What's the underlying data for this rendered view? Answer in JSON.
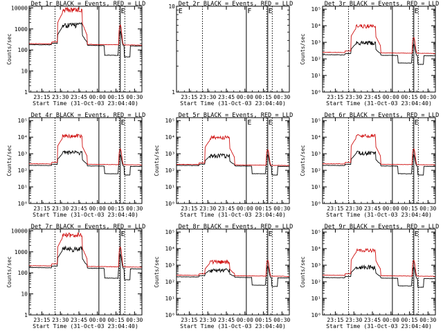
{
  "chart_data": [
    {
      "type": "line",
      "title": "Det 1r BLACK = Events, RED = LLD",
      "xlabel": "Start Time (31-Oct-03 23:04:40)",
      "ylabel": "Counts/sec",
      "yscale": "log",
      "ylim": [
        1,
        12000
      ],
      "yticks": [
        "1",
        "10",
        "100",
        "1000",
        "10000"
      ],
      "xticks": [
        "23:15",
        "23:30",
        "23:45",
        "00:00",
        "00:15",
        "00:30"
      ],
      "markers": [
        "E"
      ],
      "has_data": true,
      "peak": 10000,
      "red_base": 200,
      "black_base": 180,
      "black_peak": 2000
    },
    {
      "type": "line",
      "title": "Det 2r BLACK = Events, RED = LLD",
      "xlabel": "Start Time (31-Oct-03 23:04:40)",
      "ylabel": "",
      "yscale": "log",
      "ylim": [
        1,
        10
      ],
      "yticks": [
        "1",
        "10"
      ],
      "xticks": [
        "23:15",
        "23:30",
        "23:45",
        "00:00",
        "00:15",
        "00:30"
      ],
      "markers": [
        "E",
        "F",
        "E"
      ],
      "has_data": false
    },
    {
      "type": "line",
      "title": "Det 3r BLACK = Events, RED = LLD",
      "xlabel": "Start Time (31-Oct-03 23:04:40)",
      "ylabel": "Counts/sec",
      "yscale": "log",
      "ylim": [
        1,
        150000
      ],
      "yticks": [
        "10⁰",
        "10¹",
        "10²",
        "10³",
        "10⁴",
        "10⁵"
      ],
      "xticks": [
        "23:15",
        "23:30",
        "23:45",
        "00:00",
        "00:15",
        "00:30"
      ],
      "markers": [
        "E"
      ],
      "has_data": true,
      "peak": 12000,
      "red_base": 250,
      "black_base": 180,
      "black_peak": 1200
    },
    {
      "type": "line",
      "title": "Det 4r BLACK = Events, RED = LLD",
      "xlabel": "Start Time (31-Oct-03 23:04:40)",
      "ylabel": "Counts/sec",
      "yscale": "log",
      "ylim": [
        1,
        150000
      ],
      "yticks": [
        "10⁰",
        "10¹",
        "10²",
        "10³",
        "10⁴",
        "10⁵"
      ],
      "xticks": [
        "23:15",
        "23:30",
        "23:45",
        "00:00",
        "00:15",
        "00:30"
      ],
      "markers": [
        "E"
      ],
      "has_data": true,
      "peak": 15000,
      "red_base": 250,
      "black_base": 200,
      "black_peak": 1500
    },
    {
      "type": "line",
      "title": "Det 5r BLACK = Events, RED = LLD",
      "xlabel": "Start Time (31-Oct-03 23:04:40)",
      "ylabel": "Counts/sec",
      "yscale": "log",
      "ylim": [
        1,
        150000
      ],
      "yticks": [
        "10⁰",
        "10¹",
        "10²",
        "10³",
        "10⁴",
        "10⁵"
      ],
      "xticks": [
        "23:15",
        "23:30",
        "23:45",
        "00:00",
        "00:15",
        "00:30"
      ],
      "markers": [
        "E",
        "E"
      ],
      "has_data": true,
      "peak": 12000,
      "red_base": 230,
      "black_base": 200,
      "black_peak": 1000
    },
    {
      "type": "line",
      "title": "Det 6r BLACK = Events, RED = LLD",
      "xlabel": "Start Time (31-Oct-03 23:04:40)",
      "ylabel": "Counts/sec",
      "yscale": "log",
      "ylim": [
        1,
        150000
      ],
      "yticks": [
        "10⁰",
        "10¹",
        "10²",
        "10³",
        "10⁴",
        "10⁵"
      ],
      "xticks": [
        "23:15",
        "23:30",
        "23:45",
        "00:00",
        "00:15",
        "00:30"
      ],
      "markers": [
        "E"
      ],
      "has_data": true,
      "peak": 15000,
      "red_base": 250,
      "black_base": 200,
      "black_peak": 1500
    },
    {
      "type": "line",
      "title": "Det 7r BLACK = Events, RED = LLD",
      "xlabel": "Start Time (31-Oct-03 23:04:40)",
      "ylabel": "Counts/sec",
      "yscale": "log",
      "ylim": [
        1,
        12000
      ],
      "yticks": [
        "1",
        "10",
        "100",
        "1000",
        "10000"
      ],
      "xticks": [
        "23:15",
        "23:30",
        "23:45",
        "00:00",
        "00:15",
        "00:30"
      ],
      "markers": [
        "E"
      ],
      "has_data": true,
      "peak": 8000,
      "red_base": 220,
      "black_base": 180,
      "black_peak": 1800
    },
    {
      "type": "line",
      "title": "Det 8r BLACK = Events, RED = LLD",
      "xlabel": "Start Time (31-Oct-03 23:04:40)",
      "ylabel": "Counts/sec",
      "yscale": "log",
      "ylim": [
        1,
        150000
      ],
      "yticks": [
        "10⁰",
        "10¹",
        "10²",
        "10³",
        "10⁴",
        "10⁵"
      ],
      "xticks": [
        "23:15",
        "23:30",
        "23:45",
        "00:00",
        "00:15",
        "00:30"
      ],
      "markers": [
        "E"
      ],
      "has_data": true,
      "peak": 2000,
      "red_base": 250,
      "black_base": 200,
      "black_peak": 600
    },
    {
      "type": "line",
      "title": "Det 9r BLACK = Events, RED = LLD",
      "xlabel": "Start Time (31-Oct-03 23:04:40)",
      "ylabel": "Counts/sec",
      "yscale": "log",
      "ylim": [
        1,
        150000
      ],
      "yticks": [
        "10⁰",
        "10¹",
        "10²",
        "10³",
        "10⁴",
        "10⁵"
      ],
      "xticks": [
        "23:15",
        "23:30",
        "23:45",
        "00:00",
        "00:15",
        "00:30"
      ],
      "markers": [
        "E"
      ],
      "has_data": true,
      "peak": 10000,
      "red_base": 250,
      "black_base": 180,
      "black_peak": 1000
    }
  ],
  "colors": {
    "events": "#000000",
    "lld": "#d01010"
  }
}
